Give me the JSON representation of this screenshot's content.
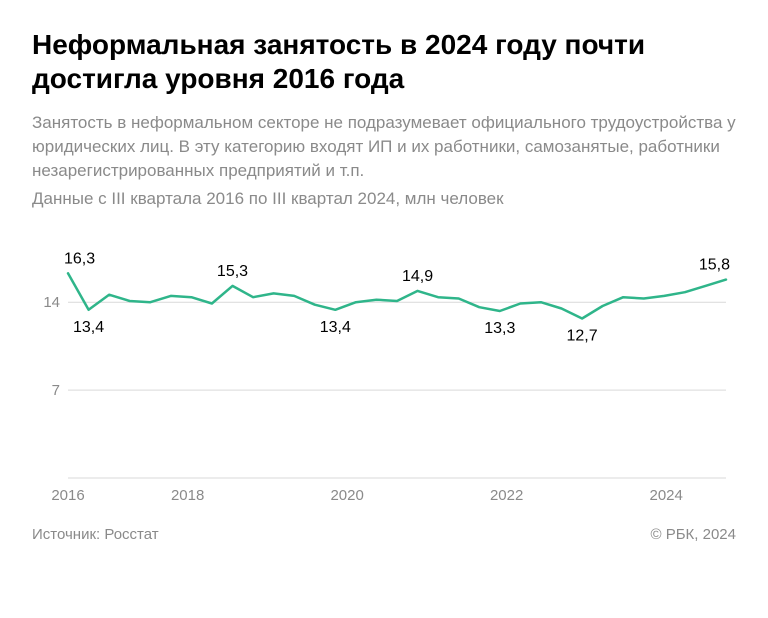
{
  "title": "Неформальная занятость в 2024 году почти достигла уровня 2016 года",
  "subtitle": "Занятость в неформальном секторе не подразумевает официального трудоустройства у юридических лиц. В эту категорию входят ИП и их работники, самозанятые, работники незарегистрированных предприятий и т.п.",
  "subtitle2": "Данные с III квартала 2016 по III квартал 2024, млн человек",
  "footer_left": "Источник: Росстат",
  "footer_right": "© РБК, 2024",
  "chart": {
    "type": "line",
    "line_color": "#2fb58a",
    "line_width": 2.5,
    "grid_color": "#d9d9d9",
    "axis_color": "#d9d9d9",
    "background_color": "#ffffff",
    "label_fontsize": 16,
    "axis_fontsize": 15,
    "ylim": [
      0,
      18
    ],
    "y_ticks": [
      7,
      14
    ],
    "x_ticks": [
      2016,
      2018,
      2020,
      2022,
      2024
    ],
    "x_start": 2016.5,
    "x_end": 2024.75,
    "values": [
      16.3,
      13.4,
      14.6,
      14.1,
      14.0,
      14.5,
      14.4,
      13.9,
      15.3,
      14.4,
      14.7,
      14.5,
      13.8,
      13.4,
      14.0,
      14.2,
      14.1,
      14.9,
      14.4,
      14.3,
      13.6,
      13.3,
      13.9,
      14.0,
      13.5,
      12.7,
      13.7,
      14.4,
      14.3,
      14.5,
      14.8,
      15.3,
      15.8
    ],
    "callouts": [
      {
        "i": 0,
        "text": "16,3",
        "pos": "above"
      },
      {
        "i": 1,
        "text": "13,4",
        "pos": "below"
      },
      {
        "i": 8,
        "text": "15,3",
        "pos": "above"
      },
      {
        "i": 13,
        "text": "13,4",
        "pos": "below"
      },
      {
        "i": 17,
        "text": "14,9",
        "pos": "above"
      },
      {
        "i": 21,
        "text": "13,3",
        "pos": "below"
      },
      {
        "i": 25,
        "text": "12,7",
        "pos": "below"
      },
      {
        "i": 32,
        "text": "15,8",
        "pos": "above"
      }
    ]
  }
}
